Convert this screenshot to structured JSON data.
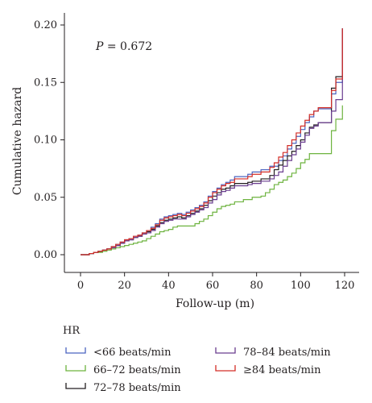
{
  "chart_data": {
    "type": "line",
    "xlabel": "Follow-up (m)",
    "ylabel": "Cumulative hazard",
    "xlim": [
      0,
      120
    ],
    "ylim": [
      0,
      0.2
    ],
    "x_ticks": [
      0,
      20,
      40,
      60,
      80,
      100,
      120
    ],
    "x_tick_labels": [
      "0",
      "20",
      "40",
      "60",
      "80",
      "100",
      "120"
    ],
    "y_ticks": [
      0,
      0.05,
      0.1,
      0.15,
      0.2
    ],
    "y_tick_labels": [
      "0.00",
      "0.05",
      "0.10",
      "0.15",
      "0.20"
    ],
    "grid": false,
    "legend_title": "HR",
    "legend_position": "bottom",
    "annotation": {
      "label": "P",
      "text": " = 0.672"
    },
    "series": [
      {
        "name": "<66 beats/min",
        "color": "#4b63c0",
        "points": [
          [
            0,
            0
          ],
          [
            4,
            0.001
          ],
          [
            6,
            0.002
          ],
          [
            8,
            0.003
          ],
          [
            10,
            0.004
          ],
          [
            12,
            0.005
          ],
          [
            14,
            0.007
          ],
          [
            16,
            0.009
          ],
          [
            18,
            0.011
          ],
          [
            20,
            0.013
          ],
          [
            22,
            0.014
          ],
          [
            24,
            0.016
          ],
          [
            26,
            0.017
          ],
          [
            28,
            0.019
          ],
          [
            30,
            0.021
          ],
          [
            32,
            0.024
          ],
          [
            34,
            0.027
          ],
          [
            36,
            0.031
          ],
          [
            38,
            0.033
          ],
          [
            40,
            0.034
          ],
          [
            42,
            0.035
          ],
          [
            44,
            0.036
          ],
          [
            46,
            0.035
          ],
          [
            48,
            0.037
          ],
          [
            50,
            0.039
          ],
          [
            52,
            0.041
          ],
          [
            54,
            0.043
          ],
          [
            56,
            0.046
          ],
          [
            58,
            0.051
          ],
          [
            60,
            0.055
          ],
          [
            62,
            0.058
          ],
          [
            64,
            0.061
          ],
          [
            66,
            0.063
          ],
          [
            68,
            0.065
          ],
          [
            70,
            0.068
          ],
          [
            74,
            0.068
          ],
          [
            76,
            0.07
          ],
          [
            78,
            0.072
          ],
          [
            82,
            0.074
          ],
          [
            86,
            0.077
          ],
          [
            90,
            0.082
          ],
          [
            92,
            0.086
          ],
          [
            94,
            0.092
          ],
          [
            96,
            0.097
          ],
          [
            98,
            0.103
          ],
          [
            100,
            0.109
          ],
          [
            102,
            0.115
          ],
          [
            104,
            0.12
          ],
          [
            106,
            0.125
          ],
          [
            108,
            0.127
          ],
          [
            114,
            0.14
          ],
          [
            116,
            0.15
          ],
          [
            119,
            0.197
          ]
        ]
      },
      {
        "name": "66–72 beats/min",
        "color": "#6db33f",
        "points": [
          [
            0,
            0
          ],
          [
            4,
            0.001
          ],
          [
            6,
            0.002
          ],
          [
            8,
            0.002
          ],
          [
            10,
            0.003
          ],
          [
            12,
            0.004
          ],
          [
            14,
            0.005
          ],
          [
            16,
            0.006
          ],
          [
            18,
            0.007
          ],
          [
            20,
            0.008
          ],
          [
            22,
            0.009
          ],
          [
            24,
            0.01
          ],
          [
            26,
            0.011
          ],
          [
            28,
            0.012
          ],
          [
            30,
            0.014
          ],
          [
            32,
            0.016
          ],
          [
            34,
            0.018
          ],
          [
            36,
            0.02
          ],
          [
            38,
            0.021
          ],
          [
            40,
            0.022
          ],
          [
            42,
            0.024
          ],
          [
            44,
            0.025
          ],
          [
            46,
            0.025
          ],
          [
            50,
            0.025
          ],
          [
            52,
            0.027
          ],
          [
            54,
            0.029
          ],
          [
            56,
            0.031
          ],
          [
            58,
            0.034
          ],
          [
            60,
            0.037
          ],
          [
            62,
            0.04
          ],
          [
            64,
            0.042
          ],
          [
            66,
            0.043
          ],
          [
            68,
            0.044
          ],
          [
            70,
            0.046
          ],
          [
            74,
            0.048
          ],
          [
            78,
            0.05
          ],
          [
            82,
            0.051
          ],
          [
            84,
            0.054
          ],
          [
            86,
            0.057
          ],
          [
            88,
            0.061
          ],
          [
            90,
            0.063
          ],
          [
            92,
            0.065
          ],
          [
            94,
            0.068
          ],
          [
            96,
            0.071
          ],
          [
            98,
            0.075
          ],
          [
            100,
            0.08
          ],
          [
            102,
            0.083
          ],
          [
            104,
            0.088
          ],
          [
            114,
            0.108
          ],
          [
            116,
            0.118
          ],
          [
            119,
            0.13
          ]
        ]
      },
      {
        "name": "72–78 beats/min",
        "color": "#231f20",
        "points": [
          [
            0,
            0
          ],
          [
            4,
            0.001
          ],
          [
            6,
            0.002
          ],
          [
            8,
            0.003
          ],
          [
            10,
            0.004
          ],
          [
            12,
            0.005
          ],
          [
            14,
            0.006
          ],
          [
            16,
            0.008
          ],
          [
            18,
            0.01
          ],
          [
            20,
            0.012
          ],
          [
            22,
            0.013
          ],
          [
            24,
            0.015
          ],
          [
            26,
            0.016
          ],
          [
            28,
            0.018
          ],
          [
            30,
            0.02
          ],
          [
            32,
            0.022
          ],
          [
            34,
            0.025
          ],
          [
            36,
            0.028
          ],
          [
            38,
            0.03
          ],
          [
            40,
            0.031
          ],
          [
            42,
            0.032
          ],
          [
            44,
            0.033
          ],
          [
            46,
            0.032
          ],
          [
            48,
            0.034
          ],
          [
            50,
            0.036
          ],
          [
            52,
            0.038
          ],
          [
            54,
            0.04
          ],
          [
            56,
            0.043
          ],
          [
            58,
            0.047
          ],
          [
            60,
            0.051
          ],
          [
            62,
            0.054
          ],
          [
            64,
            0.057
          ],
          [
            66,
            0.058
          ],
          [
            68,
            0.06
          ],
          [
            70,
            0.062
          ],
          [
            74,
            0.062
          ],
          [
            76,
            0.063
          ],
          [
            78,
            0.064
          ],
          [
            82,
            0.066
          ],
          [
            86,
            0.069
          ],
          [
            88,
            0.074
          ],
          [
            90,
            0.078
          ],
          [
            92,
            0.082
          ],
          [
            94,
            0.086
          ],
          [
            96,
            0.09
          ],
          [
            98,
            0.095
          ],
          [
            100,
            0.1
          ],
          [
            102,
            0.106
          ],
          [
            104,
            0.111
          ],
          [
            106,
            0.113
          ],
          [
            108,
            0.115
          ],
          [
            114,
            0.145
          ],
          [
            116,
            0.155
          ],
          [
            119,
            0.197
          ]
        ]
      },
      {
        "name": "78–84 beats/min",
        "color": "#6a3d8f",
        "points": [
          [
            0,
            0
          ],
          [
            4,
            0.001
          ],
          [
            6,
            0.002
          ],
          [
            8,
            0.003
          ],
          [
            10,
            0.004
          ],
          [
            12,
            0.005
          ],
          [
            14,
            0.006
          ],
          [
            16,
            0.008
          ],
          [
            18,
            0.01
          ],
          [
            20,
            0.012
          ],
          [
            22,
            0.013
          ],
          [
            24,
            0.015
          ],
          [
            26,
            0.016
          ],
          [
            28,
            0.018
          ],
          [
            30,
            0.019
          ],
          [
            32,
            0.021
          ],
          [
            34,
            0.024
          ],
          [
            36,
            0.027
          ],
          [
            38,
            0.029
          ],
          [
            40,
            0.03
          ],
          [
            42,
            0.031
          ],
          [
            44,
            0.031
          ],
          [
            46,
            0.031
          ],
          [
            48,
            0.033
          ],
          [
            50,
            0.035
          ],
          [
            52,
            0.037
          ],
          [
            54,
            0.039
          ],
          [
            56,
            0.041
          ],
          [
            58,
            0.045
          ],
          [
            60,
            0.048
          ],
          [
            62,
            0.052
          ],
          [
            64,
            0.055
          ],
          [
            66,
            0.056
          ],
          [
            68,
            0.058
          ],
          [
            70,
            0.06
          ],
          [
            74,
            0.06
          ],
          [
            76,
            0.061
          ],
          [
            78,
            0.062
          ],
          [
            82,
            0.064
          ],
          [
            86,
            0.066
          ],
          [
            88,
            0.069
          ],
          [
            90,
            0.072
          ],
          [
            92,
            0.077
          ],
          [
            94,
            0.082
          ],
          [
            96,
            0.087
          ],
          [
            98,
            0.092
          ],
          [
            100,
            0.098
          ],
          [
            102,
            0.104
          ],
          [
            104,
            0.11
          ],
          [
            106,
            0.112
          ],
          [
            108,
            0.115
          ],
          [
            114,
            0.125
          ],
          [
            116,
            0.135
          ],
          [
            119,
            0.197
          ]
        ]
      },
      {
        "name": "≥84 beats/min",
        "color": "#d42e27",
        "points": [
          [
            0,
            0
          ],
          [
            4,
            0.001
          ],
          [
            6,
            0.002
          ],
          [
            8,
            0.003
          ],
          [
            10,
            0.004
          ],
          [
            12,
            0.005
          ],
          [
            14,
            0.007
          ],
          [
            16,
            0.009
          ],
          [
            18,
            0.011
          ],
          [
            20,
            0.013
          ],
          [
            22,
            0.014
          ],
          [
            24,
            0.016
          ],
          [
            26,
            0.017
          ],
          [
            28,
            0.019
          ],
          [
            30,
            0.021
          ],
          [
            32,
            0.023
          ],
          [
            34,
            0.026
          ],
          [
            36,
            0.03
          ],
          [
            38,
            0.032
          ],
          [
            40,
            0.033
          ],
          [
            42,
            0.034
          ],
          [
            44,
            0.035
          ],
          [
            46,
            0.034
          ],
          [
            48,
            0.036
          ],
          [
            50,
            0.038
          ],
          [
            52,
            0.04
          ],
          [
            54,
            0.042
          ],
          [
            56,
            0.045
          ],
          [
            58,
            0.05
          ],
          [
            60,
            0.054
          ],
          [
            62,
            0.057
          ],
          [
            64,
            0.06
          ],
          [
            66,
            0.062
          ],
          [
            68,
            0.063
          ],
          [
            70,
            0.066
          ],
          [
            74,
            0.066
          ],
          [
            76,
            0.068
          ],
          [
            78,
            0.07
          ],
          [
            82,
            0.072
          ],
          [
            86,
            0.076
          ],
          [
            88,
            0.08
          ],
          [
            90,
            0.085
          ],
          [
            92,
            0.089
          ],
          [
            94,
            0.095
          ],
          [
            96,
            0.1
          ],
          [
            98,
            0.106
          ],
          [
            100,
            0.112
          ],
          [
            102,
            0.117
          ],
          [
            104,
            0.122
          ],
          [
            106,
            0.125
          ],
          [
            108,
            0.128
          ],
          [
            114,
            0.143
          ],
          [
            116,
            0.153
          ],
          [
            119,
            0.197
          ]
        ]
      }
    ]
  }
}
